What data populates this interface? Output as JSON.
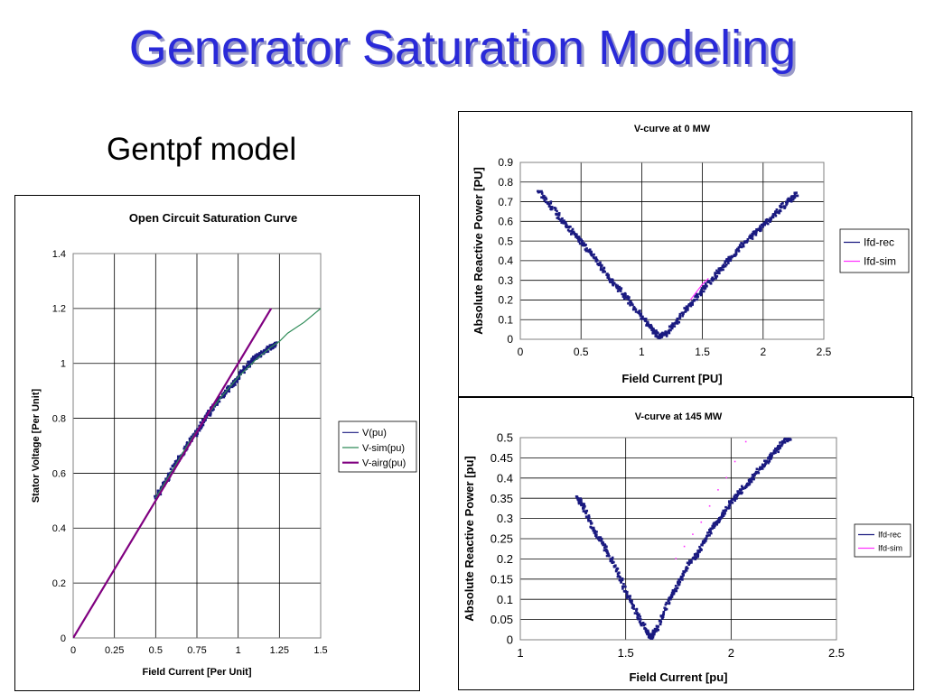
{
  "slide": {
    "title": "Generator Saturation Modeling",
    "subtitle": "Gentpf model"
  },
  "colors": {
    "title": "#2a2ad8",
    "recorded": "#1a1a80",
    "sim_green": "#2e8b57",
    "airgap": "#800080",
    "sim_magenta": "#ff33ff"
  },
  "chart_data": [
    {
      "id": "ocsc",
      "type": "line",
      "title": "Open Circuit Saturation Curve",
      "xlabel": "Field Current [Per Unit]",
      "ylabel": "Stator Voltage [Per Unit]",
      "xlim": [
        0,
        1.5
      ],
      "ylim": [
        0,
        1.4
      ],
      "x_ticks": [
        0,
        0.25,
        0.5,
        0.75,
        1,
        1.25,
        1.5
      ],
      "x_tick_labels": [
        "0",
        "0.25",
        "0.5",
        "0.75",
        "1",
        "1.25",
        "1.5"
      ],
      "y_ticks": [
        0,
        0.2,
        0.4,
        0.6,
        0.8,
        1,
        1.2,
        1.4
      ],
      "y_tick_labels": [
        "0",
        "0.2",
        "0.4",
        "0.6",
        "0.8",
        "1",
        "1.2",
        "1.4"
      ],
      "grid": true,
      "legend": "right",
      "series": [
        {
          "name": "V(pu)",
          "style": "points",
          "color": "#1a1a80",
          "x": [
            0.5,
            0.55,
            0.6,
            0.65,
            0.7,
            0.75,
            0.8,
            0.85,
            0.9,
            0.95,
            1.0,
            1.05,
            1.1,
            1.15,
            1.2,
            1.23
          ],
          "y": [
            0.51,
            0.56,
            0.61,
            0.66,
            0.71,
            0.75,
            0.8,
            0.84,
            0.88,
            0.91,
            0.95,
            0.99,
            1.02,
            1.04,
            1.06,
            1.07
          ]
        },
        {
          "name": "V-sim(pu)",
          "style": "line",
          "color": "#2e8b57",
          "x": [
            0.5,
            0.6,
            0.7,
            0.8,
            0.9,
            1.0,
            1.1,
            1.2,
            1.25,
            1.3,
            1.4,
            1.5
          ],
          "y": [
            0.51,
            0.61,
            0.71,
            0.8,
            0.88,
            0.95,
            1.01,
            1.06,
            1.08,
            1.11,
            1.15,
            1.2
          ]
        },
        {
          "name": "V-airg(pu)",
          "style": "line",
          "color": "#800080",
          "x": [
            0,
            1.2
          ],
          "y": [
            0,
            1.2
          ]
        }
      ]
    },
    {
      "id": "v0",
      "type": "scatter",
      "title": "V-curve at 0 MW",
      "xlabel": "Field Current [PU]",
      "ylabel": "Absolute Reactive Power [PU]",
      "xlim": [
        0,
        2.5
      ],
      "ylim": [
        0,
        0.9
      ],
      "x_ticks": [
        0,
        0.5,
        1,
        1.5,
        2,
        2.5
      ],
      "x_tick_labels": [
        "0",
        "0.5",
        "1",
        "1.5",
        "2",
        "2.5"
      ],
      "y_ticks": [
        0,
        0.1,
        0.2,
        0.3,
        0.4,
        0.5,
        0.6,
        0.7,
        0.8,
        0.9
      ],
      "y_tick_labels": [
        "0",
        "0.1",
        "0.2",
        "0.3",
        "0.4",
        "0.5",
        "0.6",
        "0.7",
        "0.8",
        "0.9"
      ],
      "grid": true,
      "legend": "right",
      "series": [
        {
          "name": "Ifd-rec",
          "style": "points",
          "color": "#1a1a80",
          "x": [
            0.15,
            0.25,
            0.35,
            0.45,
            0.55,
            0.65,
            0.75,
            0.85,
            0.95,
            1.05,
            1.1,
            1.15,
            1.2,
            1.3,
            1.4,
            1.5,
            1.6,
            1.7,
            1.8,
            1.9,
            2.0,
            2.1,
            2.2,
            2.28
          ],
          "y": [
            0.76,
            0.68,
            0.6,
            0.53,
            0.46,
            0.38,
            0.3,
            0.23,
            0.15,
            0.08,
            0.04,
            0.01,
            0.03,
            0.1,
            0.18,
            0.25,
            0.32,
            0.39,
            0.46,
            0.52,
            0.58,
            0.64,
            0.7,
            0.74
          ]
        },
        {
          "name": "Ifd-sim",
          "style": "line",
          "color": "#ff33ff",
          "x": [
            1.4,
            1.45,
            1.5,
            1.55
          ],
          "y": [
            0.2,
            0.24,
            0.28,
            0.31
          ]
        }
      ]
    },
    {
      "id": "v145",
      "type": "scatter",
      "title": "V-curve at 145 MW",
      "xlabel": "Field Current [pu]",
      "ylabel": "Absolute Reactive Power [pu]",
      "xlim": [
        1,
        2.5
      ],
      "ylim": [
        0,
        0.5
      ],
      "x_ticks": [
        1,
        1.5,
        2,
        2.5
      ],
      "x_tick_labels": [
        "1",
        "1.5",
        "2",
        "2.5"
      ],
      "y_ticks": [
        0,
        0.05,
        0.1,
        0.15,
        0.2,
        0.25,
        0.3,
        0.35,
        0.4,
        0.45,
        0.5
      ],
      "y_tick_labels": [
        "0",
        "0.05",
        "0.1",
        "0.15",
        "0.2",
        "0.25",
        "0.3",
        "0.35",
        "0.4",
        "0.45",
        "0.5"
      ],
      "grid": true,
      "legend": "right",
      "series": [
        {
          "name": "Ifd-rec",
          "style": "points",
          "color": "#1a1a80",
          "x": [
            1.27,
            1.3,
            1.35,
            1.4,
            1.45,
            1.5,
            1.55,
            1.6,
            1.62,
            1.65,
            1.7,
            1.75,
            1.8,
            1.85,
            1.9,
            1.95,
            2.0,
            2.05,
            2.1,
            2.15,
            2.2,
            2.25,
            2.28
          ],
          "y": [
            0.355,
            0.33,
            0.27,
            0.23,
            0.18,
            0.12,
            0.07,
            0.02,
            0.005,
            0.03,
            0.09,
            0.14,
            0.19,
            0.22,
            0.27,
            0.3,
            0.34,
            0.37,
            0.4,
            0.43,
            0.46,
            0.49,
            0.5
          ]
        },
        {
          "name": "Ifd-sim",
          "style": "dots",
          "color": "#ff33ff",
          "x": [
            1.74,
            1.78,
            1.82,
            1.86,
            1.9,
            1.94,
            1.98,
            2.02,
            2.07
          ],
          "y": [
            0.2,
            0.23,
            0.26,
            0.29,
            0.33,
            0.37,
            0.4,
            0.44,
            0.49
          ]
        }
      ]
    }
  ]
}
